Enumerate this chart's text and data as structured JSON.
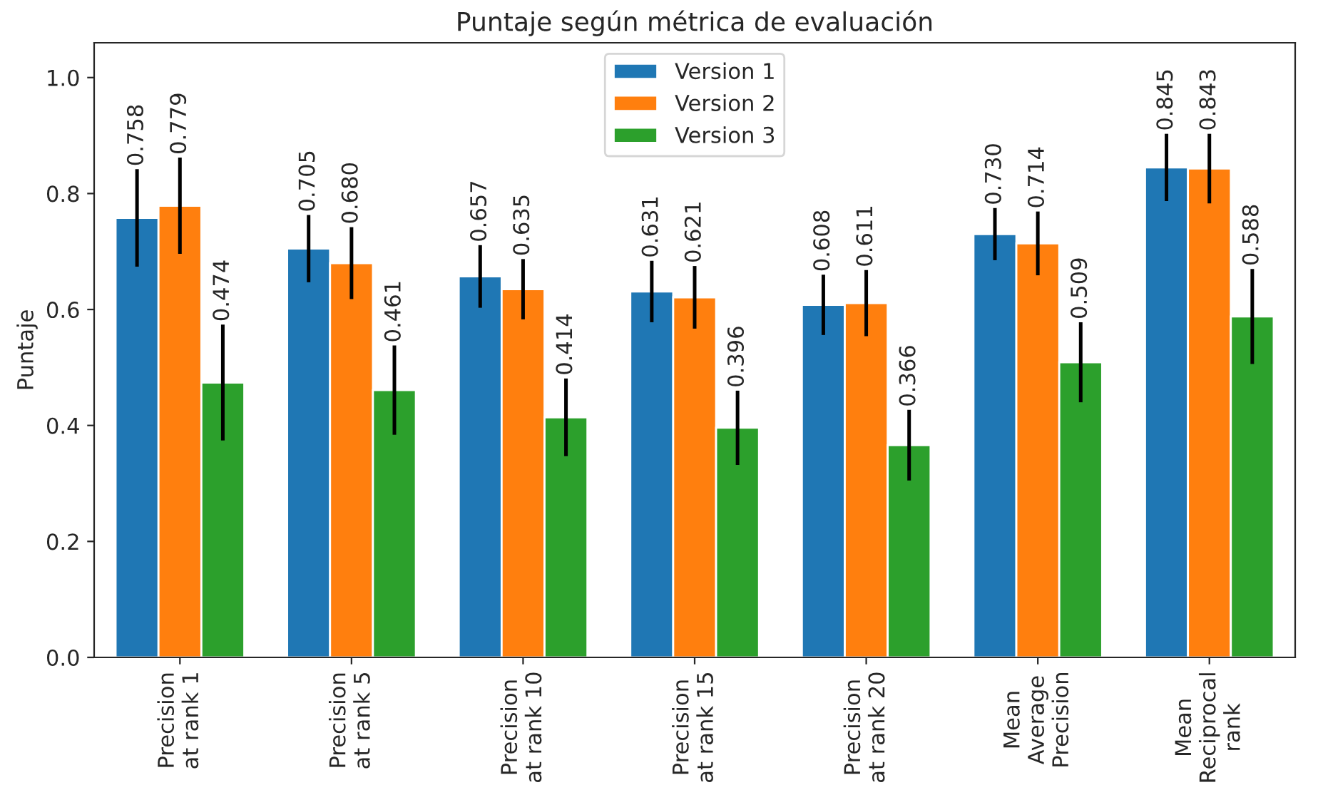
{
  "chart_data": {
    "type": "bar",
    "title": "Puntaje según métrica de evaluación",
    "ylabel": "Puntaje",
    "categories": [
      "Precision\nat rank 1",
      "Precision\nat rank 5",
      "Precision\nat rank 10",
      "Precision\nat rank 15",
      "Precision\nat rank 20",
      "Mean\nAverage\nPrecision",
      "Mean\nReciprocal\nrank"
    ],
    "series": [
      {
        "name": "Version 1",
        "color": "#1f77b4",
        "values": [
          0.758,
          0.705,
          0.657,
          0.631,
          0.608,
          0.73,
          0.845
        ],
        "errors": [
          0.084,
          0.058,
          0.054,
          0.053,
          0.052,
          0.045,
          0.058
        ],
        "value_labels": [
          "0.758",
          "0.705",
          "0.657",
          "0.631",
          "0.608",
          "0.730",
          "0.845"
        ]
      },
      {
        "name": "Version 2",
        "color": "#ff7f0e",
        "values": [
          0.779,
          0.68,
          0.635,
          0.621,
          0.611,
          0.714,
          0.843
        ],
        "errors": [
          0.083,
          0.062,
          0.052,
          0.054,
          0.057,
          0.055,
          0.06
        ],
        "value_labels": [
          "0.779",
          "0.680",
          "0.635",
          "0.621",
          "0.611",
          "0.714",
          "0.843"
        ]
      },
      {
        "name": "Version 3",
        "color": "#2ca02c",
        "values": [
          0.474,
          0.461,
          0.414,
          0.396,
          0.366,
          0.509,
          0.588
        ],
        "errors": [
          0.1,
          0.077,
          0.067,
          0.064,
          0.061,
          0.069,
          0.082
        ],
        "value_labels": [
          "0.474",
          "0.461",
          "0.414",
          "0.396",
          "0.366",
          "0.509",
          "0.588"
        ]
      }
    ],
    "ylim": [
      0,
      1.06
    ],
    "yticks": [
      {
        "value": 0,
        "label": "0.0"
      },
      {
        "value": 0.2,
        "label": "0.2"
      },
      {
        "value": 0.4,
        "label": "0.4"
      },
      {
        "value": 0.6,
        "label": "0.6"
      },
      {
        "value": 0.8,
        "label": "0.8"
      },
      {
        "value": 1.0,
        "label": "1.0"
      }
    ],
    "legend": "top",
    "grid": false
  }
}
